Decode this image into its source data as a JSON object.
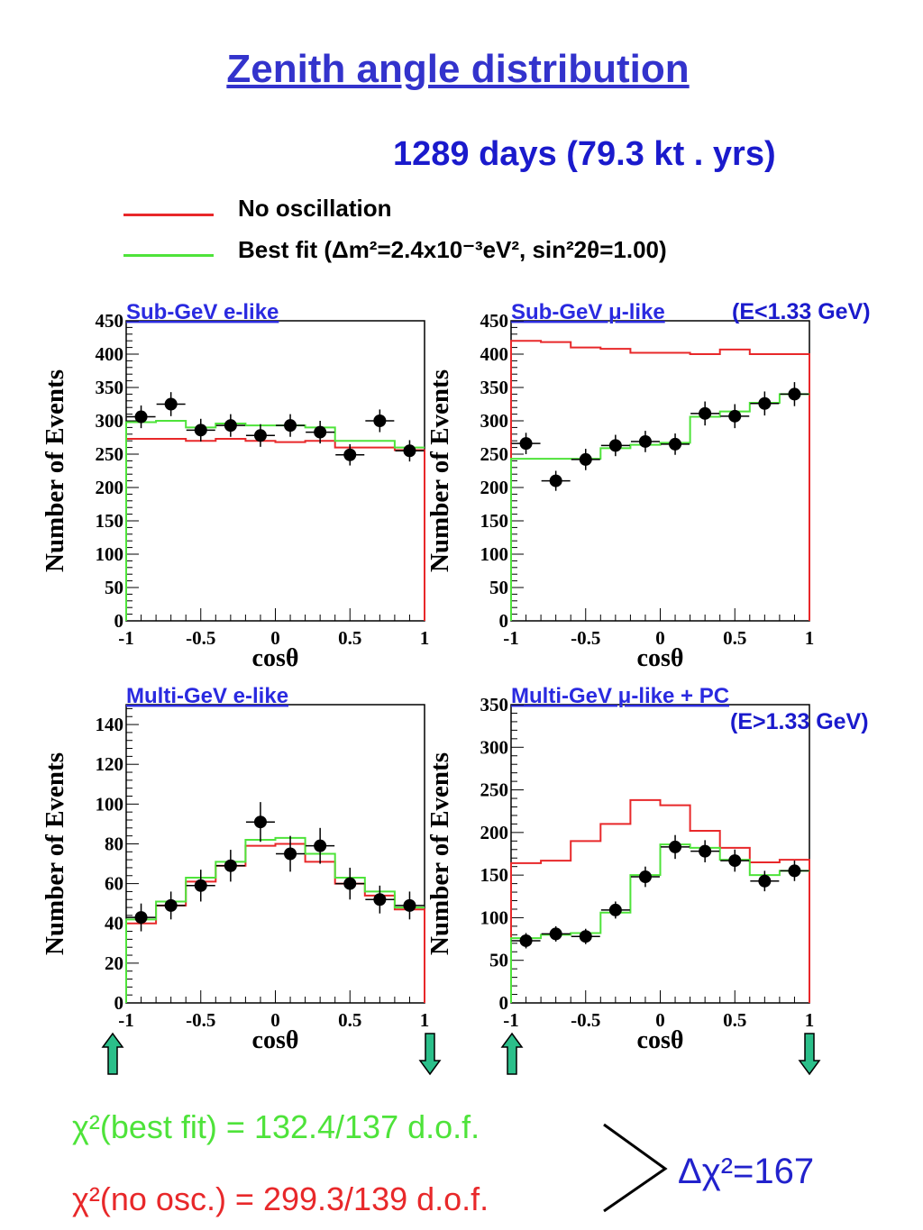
{
  "title": "Zenith angle distribution",
  "subtitle": "1289 days (79.3 kt . yrs)",
  "legend": {
    "no_osc": "No oscillation",
    "best_fit": "Best fit (Δm²=2.4x10⁻³eV², sin²2θ=1.00)"
  },
  "colors": {
    "no_osc": "#e8282a",
    "best_fit": "#4ee33a",
    "data": "#000000",
    "title": "#3333cc",
    "panel_title": "#2a2ae0",
    "arrow": "#2bbf8a"
  },
  "annotations": {
    "energy_low": "(E<1.33 GeV)",
    "energy_high": "(E>1.33 GeV)",
    "chi_best": "χ²(best fit)  = 132.4/137 d.o.f.",
    "chi_noosc": "χ²(no osc.) = 299.3/139 d.o.f.",
    "delta_chi": "Δχ²=167"
  },
  "chart_data": [
    {
      "type": "line",
      "title": "Sub-GeV e-like",
      "xlabel": "cosθ",
      "ylabel": "Number of Events",
      "xlim": [
        -1,
        1
      ],
      "ylim": [
        0,
        450
      ],
      "yticks": [
        0,
        50,
        100,
        150,
        200,
        250,
        300,
        350,
        400,
        450
      ],
      "xticks": [
        -1,
        -0.5,
        0,
        0.5,
        1
      ],
      "x": [
        -0.9,
        -0.7,
        -0.5,
        -0.3,
        -0.1,
        0.1,
        0.3,
        0.5,
        0.7,
        0.9
      ],
      "series": [
        {
          "name": "Data",
          "values": [
            306,
            325,
            286,
            293,
            278,
            293,
            283,
            249,
            300,
            255
          ],
          "errors": [
            17,
            18,
            17,
            17,
            17,
            17,
            17,
            16,
            17,
            16
          ]
        },
        {
          "name": "No oscillation",
          "values": [
            273,
            273,
            270,
            273,
            270,
            268,
            270,
            260,
            260,
            256
          ]
        },
        {
          "name": "Best fit",
          "values": [
            298,
            300,
            290,
            296,
            293,
            293,
            290,
            270,
            270,
            260
          ]
        }
      ]
    },
    {
      "type": "line",
      "title": "Sub-GeV μ-like",
      "xlabel": "cosθ",
      "ylabel": "Number of Events",
      "xlim": [
        -1,
        1
      ],
      "ylim": [
        0,
        450
      ],
      "yticks": [
        0,
        50,
        100,
        150,
        200,
        250,
        300,
        350,
        400,
        450
      ],
      "xticks": [
        -1,
        -0.5,
        0,
        0.5,
        1
      ],
      "x": [
        -0.9,
        -0.7,
        -0.5,
        -0.3,
        -0.1,
        0.1,
        0.3,
        0.5,
        0.7,
        0.9
      ],
      "series": [
        {
          "name": "Data",
          "values": [
            266,
            210,
            242,
            263,
            269,
            265,
            311,
            307,
            326,
            340
          ],
          "errors": [
            16,
            15,
            16,
            16,
            16,
            16,
            18,
            18,
            18,
            18
          ]
        },
        {
          "name": "No oscillation",
          "values": [
            420,
            418,
            410,
            408,
            402,
            402,
            400,
            407,
            400,
            400
          ]
        },
        {
          "name": "Best fit",
          "values": [
            243,
            243,
            243,
            259,
            264,
            267,
            306,
            314,
            327,
            340
          ]
        }
      ]
    },
    {
      "type": "line",
      "title": "Multi-GeV e-like",
      "xlabel": "cosθ",
      "ylabel": "Number of Events",
      "xlim": [
        -1,
        1
      ],
      "ylim": [
        0,
        150
      ],
      "yticks": [
        0,
        20,
        40,
        60,
        80,
        100,
        120,
        140
      ],
      "xticks": [
        -1,
        -0.5,
        0,
        0.5,
        1
      ],
      "x": [
        -0.9,
        -0.7,
        -0.5,
        -0.3,
        -0.1,
        0.1,
        0.3,
        0.5,
        0.7,
        0.9
      ],
      "series": [
        {
          "name": "Data",
          "values": [
            43,
            49,
            59,
            69,
            91,
            75,
            79,
            60,
            52,
            49
          ],
          "errors": [
            7,
            7,
            8,
            8,
            10,
            9,
            9,
            8,
            7,
            7
          ]
        },
        {
          "name": "No oscillation",
          "values": [
            40,
            49,
            61,
            69,
            79,
            80,
            71,
            60,
            54,
            47
          ]
        },
        {
          "name": "Best fit",
          "values": [
            42,
            51,
            63,
            71,
            82,
            83,
            75,
            63,
            56,
            48
          ]
        }
      ]
    },
    {
      "type": "line",
      "title": "Multi-GeV μ-like + PC",
      "xlabel": "cosθ",
      "ylabel": "Number of Events",
      "xlim": [
        -1,
        1
      ],
      "ylim": [
        0,
        350
      ],
      "yticks": [
        0,
        50,
        100,
        150,
        200,
        250,
        300,
        350
      ],
      "xticks": [
        -1,
        -0.5,
        0,
        0.5,
        1
      ],
      "x": [
        -0.9,
        -0.7,
        -0.5,
        -0.3,
        -0.1,
        0.1,
        0.3,
        0.5,
        0.7,
        0.9
      ],
      "series": [
        {
          "name": "Data",
          "values": [
            73,
            81,
            78,
            109,
            148,
            183,
            178,
            167,
            143,
            155
          ],
          "errors": [
            9,
            9,
            9,
            10,
            12,
            14,
            13,
            13,
            12,
            12
          ]
        },
        {
          "name": "No oscillation",
          "values": [
            164,
            167,
            190,
            210,
            238,
            232,
            202,
            182,
            165,
            168
          ]
        },
        {
          "name": "Best fit",
          "values": [
            76,
            80,
            82,
            106,
            150,
            186,
            182,
            168,
            150,
            155
          ]
        }
      ]
    }
  ]
}
